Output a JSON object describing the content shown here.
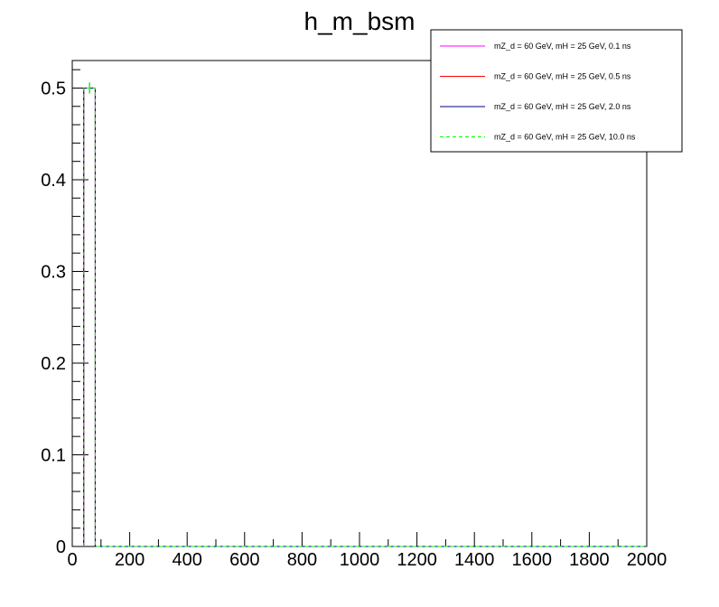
{
  "chart_data": {
    "type": "histogram",
    "title": "h_m_bsm",
    "xlabel": "",
    "ylabel": "",
    "xlim": [
      0,
      2000
    ],
    "ylim": [
      0,
      0.53
    ],
    "xticks": [
      0,
      200,
      400,
      600,
      800,
      1000,
      1200,
      1400,
      1600,
      1800,
      2000
    ],
    "yticks": [
      0,
      0.1,
      0.2,
      0.3,
      0.4,
      0.5
    ],
    "xtick_labels": [
      "0",
      "200",
      "400",
      "600",
      "800",
      "1000",
      "1200",
      "1400",
      "1600",
      "1800",
      "2000"
    ],
    "ytick_labels": [
      "0",
      "0.1",
      "0.2",
      "0.3",
      "0.4",
      "0.5"
    ],
    "bin_width": 40,
    "legend_position": "top-right",
    "series": [
      {
        "name": "mZ_d = 60 GeV, mH = 25 GeV, 0.1 ns",
        "color": "#ff00ff",
        "dash": false,
        "bins": [
          {
            "x0": 40,
            "x1": 80,
            "value": 0.5
          }
        ]
      },
      {
        "name": "mZ_d = 60 GeV, mH = 25 GeV, 0.5 ns",
        "color": "#ff0000",
        "dash": false,
        "bins": [
          {
            "x0": 40,
            "x1": 80,
            "value": 0.5
          }
        ]
      },
      {
        "name": "mZ_d = 60 GeV, mH = 25 GeV, 2.0 ns",
        "color": "#000080",
        "dash": false,
        "bins": [
          {
            "x0": 40,
            "x1": 80,
            "value": 0.5
          }
        ]
      },
      {
        "name": "mZ_d = 60 GeV, mH = 25 GeV, 10.0 ns",
        "color": "#00ff00",
        "dash": true,
        "bins": [
          {
            "x0": 40,
            "x1": 80,
            "value": 0.5
          }
        ]
      }
    ]
  }
}
